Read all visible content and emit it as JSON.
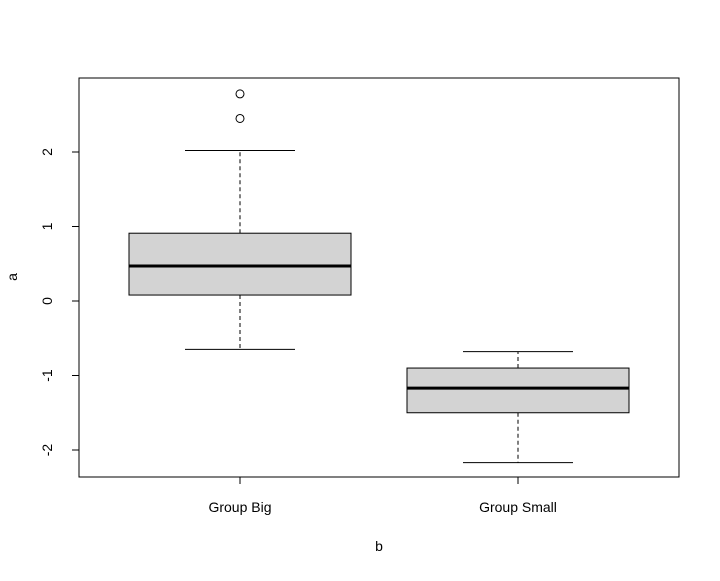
{
  "chart_data": {
    "type": "boxplot",
    "xlabel": "b",
    "ylabel": "a",
    "ylim": [
      -2.35,
      3.0
    ],
    "yticks": [
      -2,
      -1,
      0,
      1,
      2
    ],
    "ytick_labels": [
      "-2",
      "-1",
      "0",
      "1",
      "2"
    ],
    "grid": false,
    "legend": "none",
    "box_fill": "#d3d3d3",
    "line_color": "#000000",
    "categories": [
      "Group Big",
      "Group Small"
    ],
    "boxes": [
      {
        "category": "Group Big",
        "whisker_low": -0.65,
        "q1": 0.08,
        "median": 0.47,
        "q3": 0.91,
        "whisker_high": 2.02,
        "outliers": [
          2.45,
          2.78
        ]
      },
      {
        "category": "Group Small",
        "whisker_low": -2.17,
        "q1": -1.5,
        "median": -1.17,
        "q3": -0.9,
        "whisker_high": -0.68,
        "outliers": []
      }
    ]
  }
}
